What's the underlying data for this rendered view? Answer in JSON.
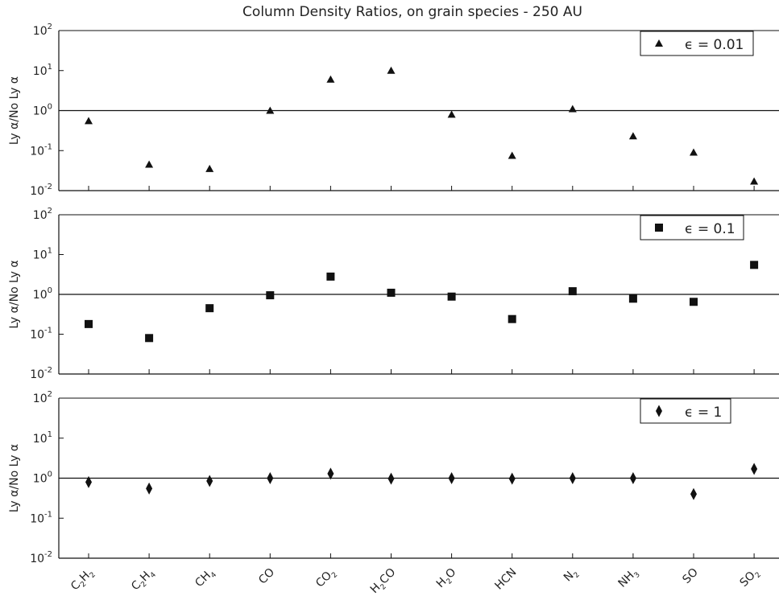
{
  "chart_data": {
    "type": "scatter",
    "title": "Column Density Ratios, on grain species - 250 AU",
    "ylabel": "Ly α/No Ly α",
    "yscale": "log",
    "ylim": [
      0.01,
      100
    ],
    "reference_line": 1,
    "categories": [
      {
        "base": "C",
        "sub": "2",
        "rest": "H",
        "sub2": "2"
      },
      {
        "base": "C",
        "sub": "2",
        "rest": "H",
        "sub2": "4"
      },
      {
        "base": "CH",
        "sub": "4",
        "rest": "",
        "sub2": ""
      },
      {
        "base": "CO",
        "sub": "",
        "rest": "",
        "sub2": ""
      },
      {
        "base": "CO",
        "sub": "2",
        "rest": "",
        "sub2": ""
      },
      {
        "base": "H",
        "sub": "2",
        "rest": "CO",
        "sub2": ""
      },
      {
        "base": "H",
        "sub": "2",
        "rest": "O",
        "sub2": ""
      },
      {
        "base": "HCN",
        "sub": "",
        "rest": "",
        "sub2": ""
      },
      {
        "base": "N",
        "sub": "2",
        "rest": "",
        "sub2": ""
      },
      {
        "base": "NH",
        "sub": "3",
        "rest": "",
        "sub2": ""
      },
      {
        "base": "SO",
        "sub": "",
        "rest": "",
        "sub2": ""
      },
      {
        "base": "SO",
        "sub": "2",
        "rest": "",
        "sub2": ""
      }
    ],
    "yticks": [
      {
        "base": "10",
        "exp": "-2"
      },
      {
        "base": "10",
        "exp": "-1"
      },
      {
        "base": "10",
        "exp": "0"
      },
      {
        "base": "10",
        "exp": "1"
      },
      {
        "base": "10",
        "exp": "2"
      }
    ],
    "panels": [
      {
        "legend": "ϵ = 0.01",
        "marker": "triangle",
        "legend_position": "top-right",
        "values": [
          0.55,
          0.045,
          0.035,
          1.0,
          6.0,
          10.0,
          0.8,
          0.075,
          1.1,
          0.23,
          0.09,
          0.017
        ]
      },
      {
        "legend": "ϵ = 0.1",
        "marker": "square",
        "legend_position": "top-right",
        "values": [
          0.18,
          0.08,
          0.45,
          0.95,
          2.8,
          1.1,
          0.88,
          0.24,
          1.2,
          0.78,
          0.65,
          5.5
        ]
      },
      {
        "legend": "ϵ = 1",
        "marker": "diamond",
        "legend_position": "top-right",
        "values": [
          0.8,
          0.55,
          0.85,
          1.0,
          1.3,
          0.97,
          1.0,
          0.97,
          1.0,
          1.0,
          0.4,
          1.7
        ]
      }
    ]
  }
}
